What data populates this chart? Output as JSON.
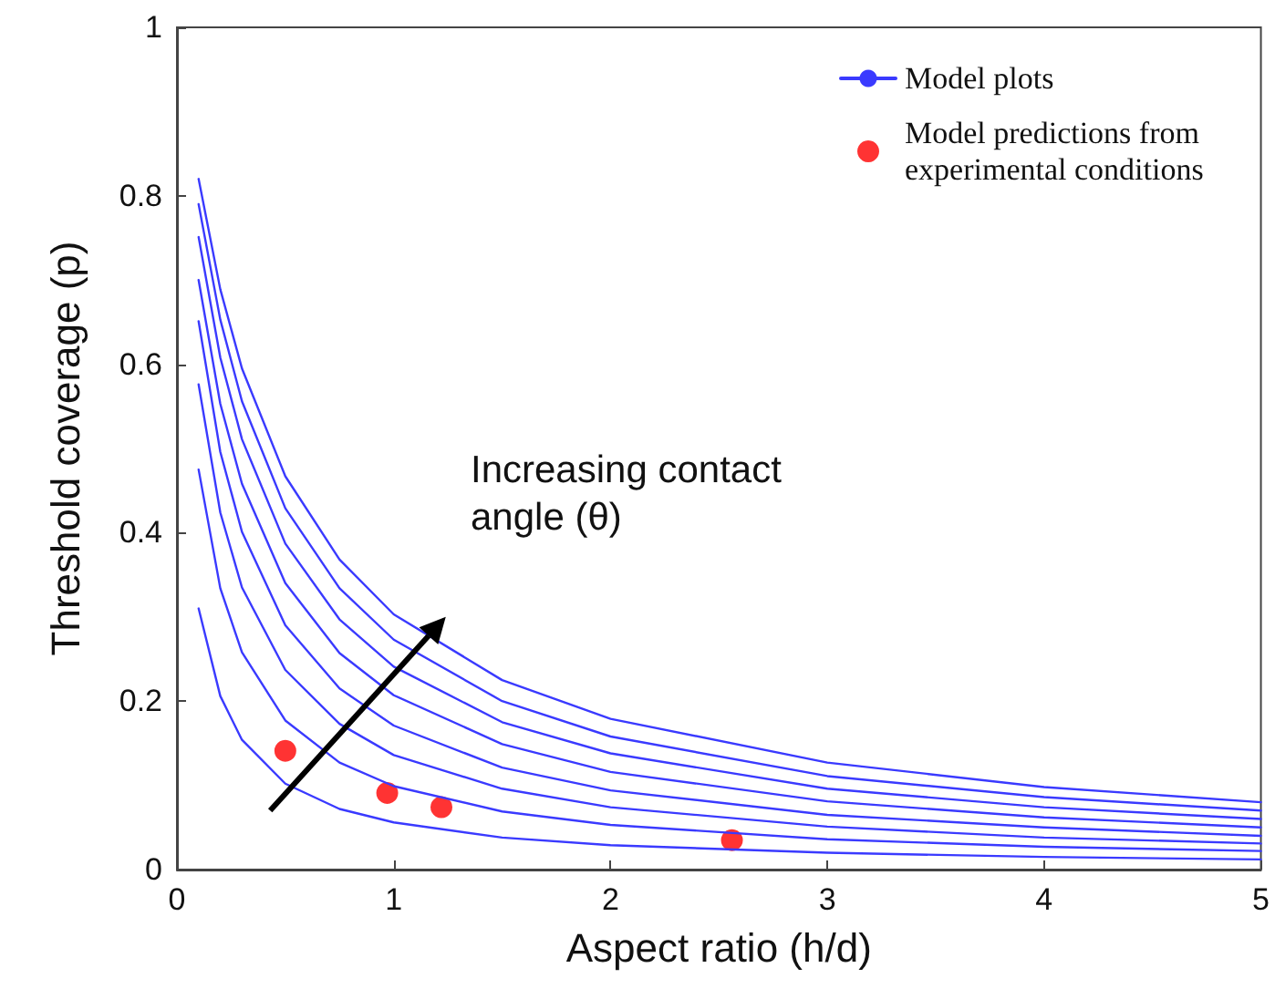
{
  "chart_data": {
    "type": "line",
    "xlabel": "Aspect ratio (h/d)",
    "ylabel": "Threshold coverage (p)",
    "annotations": [
      "Increasing contact angle (θ)"
    ],
    "xlim": [
      0,
      5
    ],
    "xticks": [
      0,
      1,
      2,
      3,
      4,
      5
    ],
    "ylim": [
      0,
      1
    ],
    "yticks": [
      0,
      0.2,
      0.4,
      0.6,
      0.8,
      1
    ],
    "grid": false,
    "legend": "top right",
    "line_style": "solid",
    "x": [
      0.1,
      0.2,
      0.3,
      0.5,
      0.75,
      1,
      1.5,
      2,
      3,
      4,
      5
    ],
    "series": [
      {
        "name": "Model plots",
        "color": "#3a3aff",
        "marker": "none",
        "values": [
          0.82,
          0.689,
          0.595,
          0.467,
          0.368,
          0.303,
          0.225,
          0.179,
          0.127,
          0.098,
          0.08
        ]
      },
      {
        "color": "#3a3aff",
        "marker": "none",
        "values": [
          0.79,
          0.653,
          0.556,
          0.429,
          0.334,
          0.273,
          0.2,
          0.158,
          0.111,
          0.086,
          0.07
        ]
      },
      {
        "color": "#3a3aff",
        "marker": "none",
        "values": [
          0.751,
          0.608,
          0.511,
          0.387,
          0.297,
          0.241,
          0.175,
          0.138,
          0.096,
          0.074,
          0.06
        ]
      },
      {
        "color": "#3a3aff",
        "marker": "none",
        "values": [
          0.7,
          0.553,
          0.458,
          0.34,
          0.257,
          0.207,
          0.149,
          0.116,
          0.081,
          0.062,
          0.05
        ]
      },
      {
        "color": "#3a3aff",
        "marker": "none",
        "values": [
          0.651,
          0.496,
          0.401,
          0.29,
          0.215,
          0.171,
          0.121,
          0.094,
          0.065,
          0.05,
          0.04
        ]
      },
      {
        "color": "#3a3aff",
        "marker": "none",
        "values": [
          0.576,
          0.424,
          0.335,
          0.237,
          0.173,
          0.136,
          0.096,
          0.074,
          0.051,
          0.038,
          0.031
        ]
      },
      {
        "color": "#3a3aff",
        "marker": "none",
        "values": [
          0.475,
          0.334,
          0.258,
          0.177,
          0.127,
          0.099,
          0.069,
          0.053,
          0.036,
          0.027,
          0.022
        ]
      },
      {
        "color": "#3a3aff",
        "marker": "none",
        "values": [
          0.31,
          0.206,
          0.154,
          0.102,
          0.072,
          0.056,
          0.038,
          0.029,
          0.02,
          0.015,
          0.012
        ]
      },
      {
        "name": "Model predictions from experimental conditions",
        "type": "scatter",
        "color": "#ff0000",
        "marker": "circle",
        "x": [
          0.5,
          0.97,
          1.22,
          2.56
        ],
        "values": [
          0.141,
          0.091,
          0.074,
          0.035
        ]
      }
    ]
  }
}
